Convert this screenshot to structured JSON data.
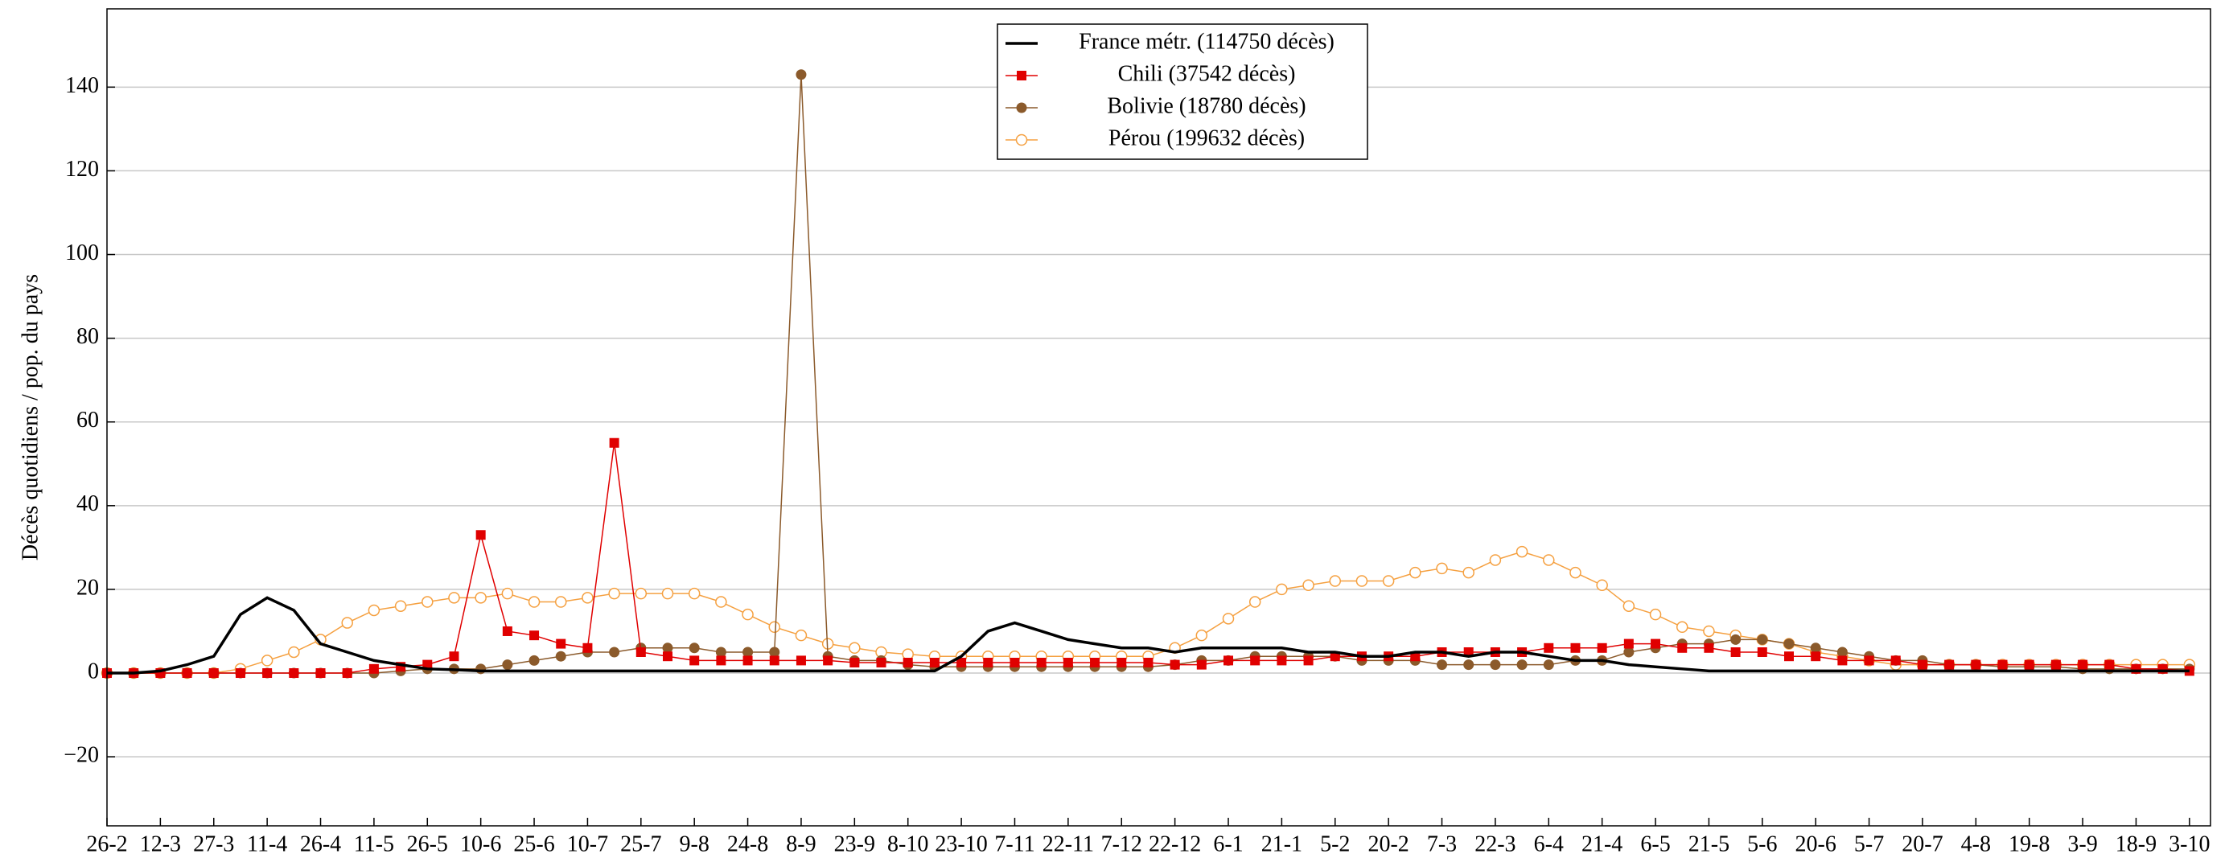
{
  "chart_data": {
    "type": "line",
    "ylabel": "Décès quotidiens / pop. du pays",
    "categories": [
      "26-2",
      null,
      "12-3",
      null,
      "27-3",
      null,
      "11-4",
      null,
      "26-4",
      null,
      "11-5",
      null,
      "26-5",
      null,
      "10-6",
      null,
      "25-6",
      null,
      "10-7",
      null,
      "25-7",
      null,
      "9-8",
      null,
      "24-8",
      null,
      "8-9",
      null,
      "23-9",
      null,
      "8-10",
      null,
      "23-10",
      null,
      "7-11",
      null,
      "22-11",
      null,
      "7-12",
      null,
      "22-12",
      null,
      "6-1",
      null,
      "21-1",
      null,
      "5-2",
      null,
      "20-2",
      null,
      "7-3",
      null,
      "22-3",
      null,
      "6-4",
      null,
      "21-4",
      null,
      "6-5",
      null,
      "21-5",
      null,
      "5-6",
      null,
      "20-6",
      null,
      "5-7",
      null,
      "20-7",
      null,
      "4-8",
      null,
      "19-8",
      null,
      "3-9",
      null,
      "18-9",
      null,
      "3-10"
    ],
    "series": [
      {
        "name": "France métr. (114750 décès)",
        "color": "#000000",
        "marker": "none",
        "values": [
          0,
          0,
          0.5,
          2,
          4,
          14,
          18,
          15,
          7,
          5,
          3,
          2,
          1,
          0.8,
          0.5,
          0.5,
          0.5,
          0.5,
          0.5,
          0.5,
          0.5,
          0.5,
          0.5,
          0.5,
          0.5,
          0.5,
          0.5,
          0.5,
          0.5,
          0.5,
          0.5,
          0.5,
          4,
          10,
          12,
          10,
          8,
          7,
          6,
          6,
          5,
          6,
          6,
          6,
          6,
          5,
          5,
          4,
          4,
          5,
          5,
          4,
          5,
          5,
          4,
          3,
          3,
          2,
          1.5,
          1,
          0.5,
          0.5,
          0.5,
          0.5,
          0.5,
          0.5,
          0.5,
          0.5,
          0.5,
          0.5,
          0.5,
          0.5,
          0.5,
          0.5,
          0.5,
          0.5,
          0.5,
          0.5,
          0.5
        ]
      },
      {
        "name": "Chili (37542 décès)",
        "color": "#e00000",
        "marker": "square",
        "values": [
          0,
          0,
          0,
          0,
          0,
          0,
          0,
          0,
          0,
          0,
          1,
          1.5,
          2,
          4,
          33,
          10,
          9,
          7,
          6,
          55,
          5,
          4,
          3,
          3,
          3,
          3,
          3,
          3,
          2.5,
          2.5,
          2.5,
          2.5,
          2.5,
          2.5,
          2.5,
          2.5,
          2.5,
          2.5,
          2.5,
          2.5,
          2,
          2,
          3,
          3,
          3,
          3,
          4,
          4,
          4,
          4,
          5,
          5,
          5,
          5,
          6,
          6,
          6,
          7,
          7,
          6,
          6,
          5,
          5,
          4,
          4,
          3,
          3,
          3,
          2,
          2,
          2,
          2,
          2,
          2,
          2,
          2,
          1,
          1,
          0.5
        ]
      },
      {
        "name": "Bolivie (18780 décès)",
        "color": "#8b5a2b",
        "marker": "circle",
        "values": [
          0,
          0,
          0,
          0,
          0,
          0,
          0,
          0,
          0,
          0,
          0,
          0.5,
          1,
          1,
          1,
          2,
          3,
          4,
          5,
          5,
          6,
          6,
          6,
          5,
          5,
          5,
          143,
          4,
          3,
          3,
          2,
          1.5,
          1.5,
          1.5,
          1.5,
          1.5,
          1.5,
          1.5,
          1.5,
          1.5,
          2,
          3,
          3,
          4,
          4,
          4,
          4,
          3,
          3,
          3,
          2,
          2,
          2,
          2,
          2,
          3,
          3,
          5,
          6,
          7,
          7,
          8,
          8,
          7,
          6,
          5,
          4,
          3,
          3,
          2,
          2,
          1.5,
          1.5,
          1.5,
          1,
          1,
          1,
          1,
          1
        ]
      },
      {
        "name": "Pérou (199632 décès)",
        "color": "#f5a040",
        "marker": "open-circle",
        "values": [
          0,
          0,
          0,
          0,
          0,
          1,
          3,
          5,
          8,
          12,
          15,
          16,
          17,
          18,
          18,
          19,
          17,
          17,
          18,
          19,
          19,
          19,
          19,
          17,
          14,
          11,
          9,
          7,
          6,
          5,
          4.5,
          4,
          4,
          4,
          4,
          4,
          4,
          4,
          4,
          4,
          6,
          9,
          13,
          17,
          20,
          21,
          22,
          22,
          22,
          24,
          25,
          24,
          27,
          29,
          27,
          24,
          21,
          16,
          14,
          11,
          10,
          9,
          8,
          7,
          5,
          4,
          3,
          2,
          2,
          2,
          2,
          2,
          2,
          2,
          2,
          2,
          2,
          2,
          2
        ]
      }
    ],
    "ylim": [
      -36.5,
      158.7
    ],
    "yticks": [
      {
        "value": -20,
        "label": "−20"
      },
      0,
      20,
      40,
      60,
      80,
      100,
      120,
      140
    ],
    "grid": true,
    "legend": "top-center"
  }
}
